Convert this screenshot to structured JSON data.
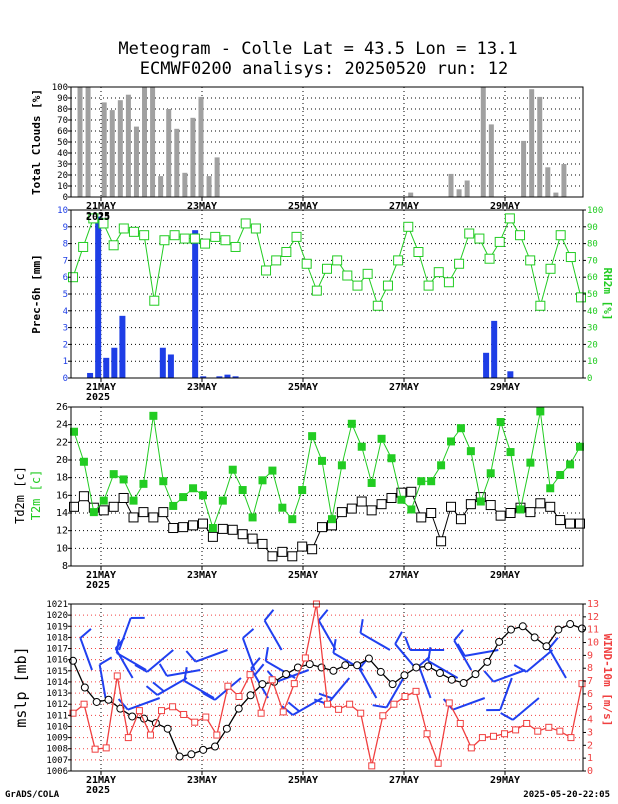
{
  "header": {
    "title_line1": "Meteogram - Colle Lat = 43.5 Lon = 13.1",
    "title_line2": "ECMWF0200 analisys: 20250520 run: 12"
  },
  "footer": {
    "left": "GrADS/COLA",
    "right": "2025-05-20-22:05"
  },
  "colors": {
    "bar_gray": "#a0a0a0",
    "bar_blue": "#1e3ee6",
    "green": "#22cc22",
    "black": "#000000",
    "red": "#f04040",
    "wind_blue": "#2040f0"
  },
  "date_ticks": [
    "21MAY",
    "23MAY",
    "25MAY",
    "27MAY",
    "29MAY"
  ],
  "year_label": "2025",
  "chart_data": [
    {
      "type": "bar",
      "title": "",
      "ylabel": "Total Clouds [%]",
      "ylim": [
        0,
        100
      ],
      "yticks": [
        "0",
        "10",
        "20",
        "30",
        "40",
        "50",
        "60",
        "70",
        "80",
        "90",
        "100"
      ],
      "grid": true,
      "values": [
        100,
        100,
        0,
        86,
        79,
        88,
        93,
        64,
        100,
        100,
        19,
        80,
        62,
        22,
        72,
        91,
        19,
        36,
        0,
        0,
        0,
        0,
        0,
        0,
        0,
        0,
        0,
        0,
        0,
        0,
        0,
        0,
        0,
        0,
        0,
        0,
        0,
        0,
        0,
        0,
        0,
        4,
        0,
        0,
        0,
        0,
        21,
        7,
        15,
        0,
        100,
        66,
        0,
        0,
        0,
        51,
        98,
        91,
        27,
        4,
        30,
        0
      ]
    },
    {
      "type": "bar",
      "title": "",
      "ylabel": "Prec-6h [mm]",
      "y2label": "RH2m [%]",
      "ylim": [
        0,
        10
      ],
      "y2lim": [
        0,
        100
      ],
      "yticks": [
        "0",
        "1",
        "2",
        "3",
        "4",
        "5",
        "6",
        "7",
        "8",
        "9",
        "10"
      ],
      "y2ticks": [
        "0",
        "10",
        "20",
        "30",
        "40",
        "50",
        "60",
        "70",
        "80",
        "90",
        "100"
      ],
      "grid": true,
      "precip": [
        0,
        0.3,
        9.6,
        1.2,
        1.8,
        3.7,
        0,
        0,
        0,
        0,
        1.8,
        1.4,
        0,
        0,
        8.8,
        0.1,
        0,
        0.1,
        0.2,
        0.1,
        0,
        0,
        0,
        0,
        0,
        0,
        0,
        0,
        0,
        0,
        0,
        0,
        0,
        0,
        0,
        0,
        0,
        0,
        0,
        0,
        0,
        0,
        0,
        0,
        0,
        0,
        0,
        0,
        0,
        0,
        1.5,
        3.4,
        0,
        0.4,
        0,
        0,
        0,
        0,
        0,
        0,
        0,
        0
      ],
      "series": [
        {
          "name": "RH2m",
          "values": [
            60,
            78,
            95,
            92,
            79,
            89,
            87,
            85,
            46,
            82,
            85,
            83,
            83,
            80,
            84,
            82,
            78,
            92,
            89,
            64,
            70,
            75,
            84,
            68,
            52,
            65,
            70,
            61,
            55,
            62,
            43,
            55,
            70,
            90,
            75,
            55,
            63,
            57,
            68,
            86,
            83,
            71,
            81,
            95,
            85,
            70,
            43,
            65,
            85,
            72,
            48
          ]
        }
      ]
    },
    {
      "type": "line",
      "title": "",
      "ylabel": "Td2m [c]",
      "ylabel2": "T2m [c]",
      "ylim": [
        8,
        26
      ],
      "yticks": [
        "8",
        "10",
        "12",
        "14",
        "16",
        "18",
        "20",
        "22",
        "24",
        "26"
      ],
      "grid": true,
      "series": [
        {
          "name": "T2m",
          "values": [
            23.2,
            19.8,
            14.1,
            15.4,
            18.4,
            17.8,
            15.4,
            17.3,
            25,
            17.6,
            14.8,
            15.8,
            16.8,
            16,
            12.3,
            15.4,
            18.9,
            16.6,
            13.5,
            17.7,
            18.8,
            14.6,
            13.3,
            16.6,
            22.7,
            19.9,
            13.3,
            19.4,
            24.1,
            21.5,
            17.4,
            22.4,
            20.2,
            15.5,
            14.4,
            17.6,
            17.6,
            19.4,
            22.1,
            23.6,
            21,
            15.3,
            18.5,
            24.3,
            20.9,
            14.4,
            19.7,
            25.5,
            16.8,
            18.3,
            19.5,
            21.5
          ]
        },
        {
          "name": "Td2m",
          "values": [
            14.7,
            15.9,
            14.6,
            14.3,
            14.7,
            15.7,
            13.5,
            14.1,
            13.5,
            14.1,
            12.3,
            12.4,
            12.6,
            12.8,
            11.3,
            12.2,
            12.1,
            11.6,
            11.1,
            10.5,
            9.1,
            9.6,
            9.1,
            10.2,
            9.9,
            12.4,
            12.6,
            14.1,
            14.5,
            15.3,
            14.3,
            15,
            15.7,
            16.3,
            16.4,
            13.5,
            14,
            10.8,
            14.7,
            13.3,
            15,
            15.8,
            14.9,
            13.7,
            14,
            14.6,
            14.1,
            15.1,
            14.7,
            13.2,
            12.8,
            12.8
          ]
        }
      ]
    },
    {
      "type": "line",
      "title": "",
      "ylabel": "mslp [mb]",
      "y2label": "WIND-10m [m/s]",
      "ylim": [
        1006,
        1021
      ],
      "y2lim": [
        0,
        13
      ],
      "yticks": [
        "1006",
        "1007",
        "1008",
        "1009",
        "1010",
        "1011",
        "1012",
        "1013",
        "1014",
        "1015",
        "1016",
        "1017",
        "1018",
        "1019",
        "1020",
        "1021"
      ],
      "y2ticks": [
        "0",
        "1",
        "2",
        "3",
        "4",
        "5",
        "6",
        "7",
        "8",
        "9",
        "10",
        "11",
        "12",
        "13"
      ],
      "grid": true,
      "series": [
        {
          "name": "mslp",
          "values": [
            1015.9,
            1013.5,
            1012.2,
            1012.4,
            1011.6,
            1010.9,
            1010.7,
            1010.3,
            1009.8,
            1007.3,
            1007.5,
            1007.9,
            1008.2,
            1009.8,
            1011.6,
            1012.8,
            1013.8,
            1014,
            1014.7,
            1015.3,
            1015.6,
            1015.3,
            1015,
            1015.5,
            1015.5,
            1016.1,
            1014.9,
            1013.8,
            1014.6,
            1015.3,
            1015.4,
            1014.8,
            1014.2,
            1013.9,
            1014.7,
            1015.8,
            1017.6,
            1018.7,
            1019,
            1018,
            1017.2,
            1018.7,
            1019.2,
            1018.8
          ]
        },
        {
          "name": "WIND-10m",
          "values": [
            4.5,
            5.2,
            1.7,
            1.8,
            7.4,
            2.6,
            4.7,
            2.8,
            4.7,
            5,
            4.4,
            3.8,
            4.2,
            2.8,
            6.6,
            5.8,
            7.5,
            4.5,
            7.1,
            4.6,
            6.8,
            8.8,
            13,
            5.2,
            4.8,
            5.2,
            4.5,
            0.4,
            4.3,
            5.2,
            5.8,
            6.2,
            2.9,
            0.6,
            5.3,
            3.7,
            1.8,
            2.6,
            2.7,
            2.9,
            3.2,
            3.7,
            3.1,
            3.4,
            3.1,
            2.6,
            6.8
          ]
        }
      ],
      "wind_barbs": [
        {
          "dir": 340,
          "barbs": 1
        },
        {
          "dir": 350,
          "barbs": 1
        },
        {
          "dir": 20,
          "barbs": 1
        },
        {
          "dir": 330,
          "barbs": 1
        },
        {
          "dir": 300,
          "barbs": 1
        },
        {
          "dir": 250,
          "barbs": 1
        },
        {
          "dir": 230,
          "barbs": 1
        },
        {
          "dir": 240,
          "barbs": 2
        },
        {
          "dir": 260,
          "barbs": 1
        },
        {
          "dir": 300,
          "barbs": 1
        },
        {
          "dir": 250,
          "barbs": 1
        },
        {
          "dir": 230,
          "barbs": 1
        },
        {
          "dir": 340,
          "barbs": 1
        },
        {
          "dir": 330,
          "barbs": 2
        },
        {
          "dir": 330,
          "barbs": 1
        },
        {
          "dir": 300,
          "barbs": 1
        },
        {
          "dir": 250,
          "barbs": 1
        },
        {
          "dir": 240,
          "barbs": 2
        },
        {
          "dir": 330,
          "barbs": 1
        },
        {
          "dir": 220,
          "barbs": 2
        },
        {
          "dir": 300,
          "barbs": 1
        },
        {
          "dir": 330,
          "barbs": 1
        },
        {
          "dir": 300,
          "barbs": 1
        },
        {
          "dir": 210,
          "barbs": 1
        },
        {
          "dir": 320,
          "barbs": 1
        },
        {
          "dir": 340,
          "barbs": 1
        },
        {
          "dir": 270,
          "barbs": 1
        },
        {
          "dir": 300,
          "barbs": 1
        },
        {
          "dir": 330,
          "barbs": 1
        },
        {
          "dir": 250,
          "barbs": 1
        },
        {
          "dir": 260,
          "barbs": 1
        },
        {
          "dir": 200,
          "barbs": 1
        },
        {
          "dir": 250,
          "barbs": 1
        },
        {
          "dir": 230,
          "barbs": 1
        },
        {
          "dir": 230,
          "barbs": 1
        },
        {
          "dir": 330,
          "barbs": 1
        }
      ]
    }
  ]
}
